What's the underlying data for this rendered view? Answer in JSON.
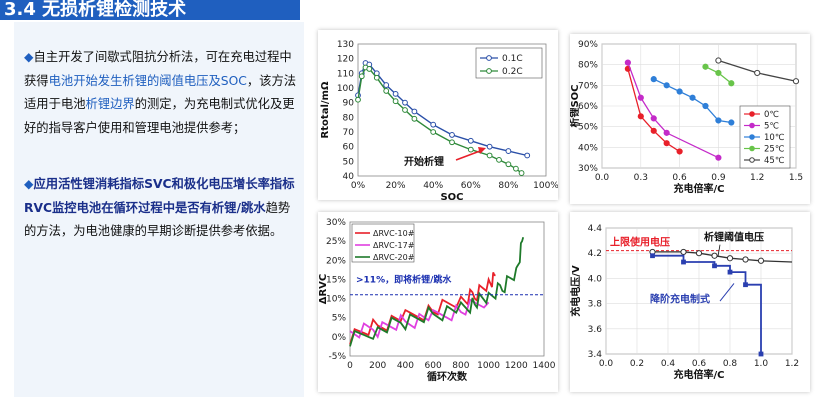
{
  "title": "3.4 无损析锂检测技术",
  "bullet_symbol": "◆",
  "para1": {
    "t1": "自主开发了间歇式阻抗分析法，可在充电过程中获得",
    "h1": "电池开始发生析锂的阈值电压及SOC",
    "t2": "，该方法适用于电池",
    "h2": "析锂边界",
    "t3": "的测定，为充电制式优化及更好的指导客户使用和管理电池提供参考；"
  },
  "para2": {
    "t1": "应用活性锂消耗指标SVC和极化电压增长率指标RVC监控电池在",
    "h1": "循环过程中是否有析锂/跳水",
    "t2": "趋势的方法，为电池健康的早期诊断提供参考依据。"
  },
  "chart_data": [
    {
      "type": "line",
      "xlabel": "SOC",
      "ylabel": "Rtotal/mΩ",
      "ylim": [
        40,
        130
      ],
      "xticks": [
        "0%",
        "20%",
        "40%",
        "60%",
        "80%",
        "100%"
      ],
      "yticks": [
        "40",
        "50",
        "60",
        "70",
        "80",
        "90",
        "100",
        "110",
        "120",
        "130"
      ],
      "annotation": "开始析锂",
      "series": [
        {
          "name": "0.1C",
          "color": "#2a4fa8",
          "x": [
            0,
            2,
            4,
            6,
            10,
            15,
            20,
            25,
            30,
            40,
            50,
            60,
            70,
            80,
            90
          ],
          "y": [
            95,
            110,
            117,
            116,
            110,
            102,
            96,
            90,
            84,
            75,
            68,
            64,
            60,
            57,
            54
          ]
        },
        {
          "name": "0.2C",
          "color": "#2f8a3a",
          "x": [
            0,
            2,
            4,
            6,
            10,
            15,
            20,
            25,
            30,
            40,
            50,
            60,
            70,
            75,
            80,
            84,
            87
          ],
          "y": [
            92,
            108,
            114,
            113,
            107,
            98,
            91,
            85,
            79,
            70,
            63,
            58,
            54,
            51,
            48,
            45,
            42
          ]
        }
      ]
    },
    {
      "type": "line",
      "xlabel": "充电倍率/C",
      "ylabel": "析锂SOC",
      "xlim": [
        0,
        1.5
      ],
      "ylim": [
        30,
        90
      ],
      "xticks": [
        "0.0",
        "0.3",
        "0.6",
        "0.9",
        "1.2",
        "1.5"
      ],
      "yticks": [
        "30%",
        "40%",
        "50%",
        "60%",
        "70%",
        "80%",
        "90%"
      ],
      "series": [
        {
          "name": "0℃",
          "color": "#e8202a",
          "x": [
            0.2,
            0.3,
            0.4,
            0.5,
            0.6
          ],
          "y": [
            78,
            55,
            48,
            42,
            38
          ]
        },
        {
          "name": "5℃",
          "color": "#c42bc9",
          "x": [
            0.2,
            0.3,
            0.4,
            0.5,
            0.9
          ],
          "y": [
            81,
            64,
            54,
            47,
            35
          ]
        },
        {
          "name": "10℃",
          "color": "#2f7fd8",
          "x": [
            0.4,
            0.5,
            0.6,
            0.7,
            0.8,
            0.9,
            1.0
          ],
          "y": [
            73,
            70,
            67,
            64,
            60,
            53,
            52
          ]
        },
        {
          "name": "25℃",
          "color": "#68c44a",
          "x": [
            0.8,
            0.9,
            1.0
          ],
          "y": [
            79,
            76,
            71
          ]
        },
        {
          "name": "45℃",
          "color": "#444444",
          "x": [
            0.9,
            1.2,
            1.5
          ],
          "y": [
            82,
            76,
            72
          ]
        }
      ]
    },
    {
      "type": "line",
      "xlabel": "循环次数",
      "ylabel": "ΔRVC",
      "xlim": [
        0,
        1400
      ],
      "ylim": [
        -5,
        30
      ],
      "xticks": [
        "0",
        "200",
        "400",
        "600",
        "800",
        "1000",
        "1200",
        "1400"
      ],
      "yticks": [
        "-5%",
        "0%",
        "5%",
        "10%",
        "15%",
        "20%",
        "25%",
        "30%"
      ],
      "threshold": 11,
      "annotation": ">11%，即将析锂/跳水",
      "series": [
        {
          "name": "ΔRVC-10#",
          "color": "#e8202a",
          "x": [
            0,
            200,
            400,
            600,
            800,
            900,
            1000,
            1050
          ],
          "y": [
            0,
            3,
            5,
            7,
            9,
            11,
            14,
            16
          ]
        },
        {
          "name": "ΔRVC-17#",
          "color": "#e040e0",
          "x": [
            0,
            200,
            400,
            600,
            800,
            1000
          ],
          "y": [
            1,
            2,
            4,
            5,
            7,
            9
          ]
        },
        {
          "name": "ΔRVC-20#",
          "color": "#1e7a2a",
          "x": [
            0,
            200,
            400,
            600,
            800,
            900,
            1000,
            1100,
            1200,
            1250
          ],
          "y": [
            -1,
            2,
            4,
            6,
            7,
            9,
            10,
            13,
            17,
            26
          ]
        }
      ]
    },
    {
      "type": "line",
      "xlabel": "充电倍率/C",
      "ylabel": "充电电压/V",
      "xlim": [
        0,
        1.2
      ],
      "ylim": [
        3.4,
        4.4
      ],
      "xticks": [
        "0.0",
        "0.2",
        "0.4",
        "0.6",
        "0.8",
        "1.0",
        "1.2"
      ],
      "yticks": [
        "3.4",
        "3.6",
        "3.8",
        "4.0",
        "4.2",
        "4.4"
      ],
      "upper_limit": 4.22,
      "annotations": [
        "上限使用电压",
        "析锂阈值电压",
        "降阶充电制式"
      ],
      "series": [
        {
          "name": "析锂阈值电压",
          "color": "#333333",
          "x": [
            0.3,
            0.5,
            0.6,
            0.7,
            0.8,
            0.9,
            1.0,
            1.2
          ],
          "y": [
            4.21,
            4.21,
            4.2,
            4.18,
            4.16,
            4.15,
            4.14,
            4.13
          ]
        },
        {
          "name": "降阶充电制式",
          "color": "#2a3fb0",
          "x": [
            0.3,
            0.5,
            0.5,
            0.7,
            0.7,
            0.8,
            0.8,
            0.9,
            0.9,
            1.0,
            1.0
          ],
          "y": [
            4.18,
            4.18,
            4.13,
            4.13,
            4.1,
            4.1,
            4.05,
            4.05,
            3.95,
            3.95,
            3.4
          ]
        }
      ]
    }
  ]
}
